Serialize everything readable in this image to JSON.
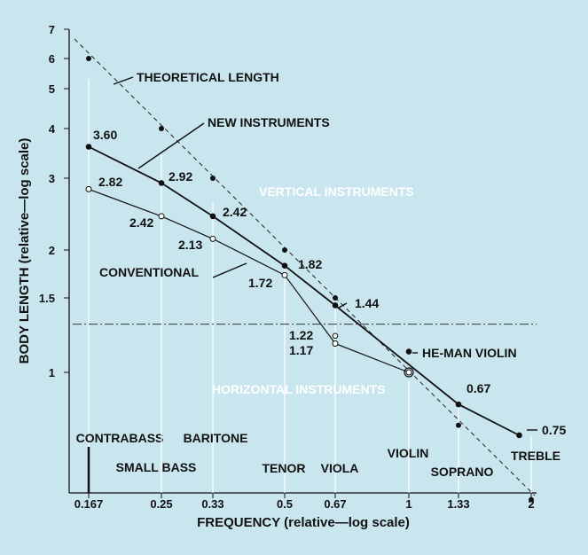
{
  "chart_data": {
    "type": "line",
    "xlabel": "FREQUENCY (relative—log scale)",
    "ylabel": "BODY LENGTH (relative—log scale)",
    "x_scale": "log",
    "y_scale": "log",
    "xlim": [
      0.167,
      2
    ],
    "ylim": [
      0.5,
      7
    ],
    "x_ticks": [
      0.167,
      0.25,
      0.33,
      0.5,
      0.67,
      1,
      1.33,
      2
    ],
    "x_tick_labels": [
      "0.167",
      "0.25",
      "0.33",
      "0.5",
      "0.67",
      "1",
      "1.33",
      "2"
    ],
    "y_ticks": [
      1,
      1.5,
      2,
      3,
      4,
      5,
      6,
      7
    ],
    "y_tick_labels": [
      "1",
      "1.5",
      "2",
      "3",
      "4",
      "5",
      "6",
      "7"
    ],
    "series": [
      {
        "name": "THEORETICAL LENGTH",
        "style": "dashed",
        "x": [
          0.167,
          0.25,
          0.33,
          0.5,
          0.67,
          1,
          1.33,
          2
        ],
        "y": [
          6.0,
          4.0,
          3.0,
          2.0,
          1.5,
          1.0,
          0.75,
          0.5
        ]
      },
      {
        "name": "NEW INSTRUMENTS",
        "style": "solid-filled",
        "x": [
          0.167,
          0.25,
          0.33,
          0.5,
          0.67,
          1.33,
          1.87
        ],
        "y": [
          3.6,
          2.92,
          2.42,
          1.82,
          1.44,
          0.84,
          0.71
        ]
      },
      {
        "name": "CONVENTIONAL",
        "style": "solid-open",
        "x": [
          0.167,
          0.25,
          0.33,
          0.5,
          0.67,
          1
        ],
        "y": [
          2.82,
          2.42,
          2.13,
          1.72,
          1.17,
          1.0
        ]
      }
    ],
    "value_labels": [
      "3.60",
      "2.82",
      "2.92",
      "2.42",
      "2.42",
      "2.13",
      "1.82",
      "1.72",
      "1.44",
      "1.22",
      "1.17",
      "0.67",
      "0.75"
    ],
    "extra_points": [
      {
        "label": "HE-MAN VIOLIN",
        "x": 1.0,
        "y": 1.12
      },
      {
        "label": "1.22",
        "x": 0.67,
        "y": 1.22
      }
    ],
    "regions": {
      "divider_y": 1.3,
      "upper": "VERTICAL INSTRUMENTS",
      "lower": "HORIZONTAL INSTRUMENTS"
    },
    "instruments": [
      {
        "name": "CONTRABASS",
        "x": 0.167
      },
      {
        "name": "SMALL BASS",
        "x": 0.25
      },
      {
        "name": "BARITONE",
        "x": 0.33
      },
      {
        "name": "TENOR",
        "x": 0.5
      },
      {
        "name": "VIOLA",
        "x": 0.67
      },
      {
        "name": "VIOLIN",
        "x": 1
      },
      {
        "name": "SOPRANO",
        "x": 1.33
      },
      {
        "name": "TREBLE",
        "x": 2
      }
    ],
    "grid": false,
    "background": "#c9e6ef"
  }
}
